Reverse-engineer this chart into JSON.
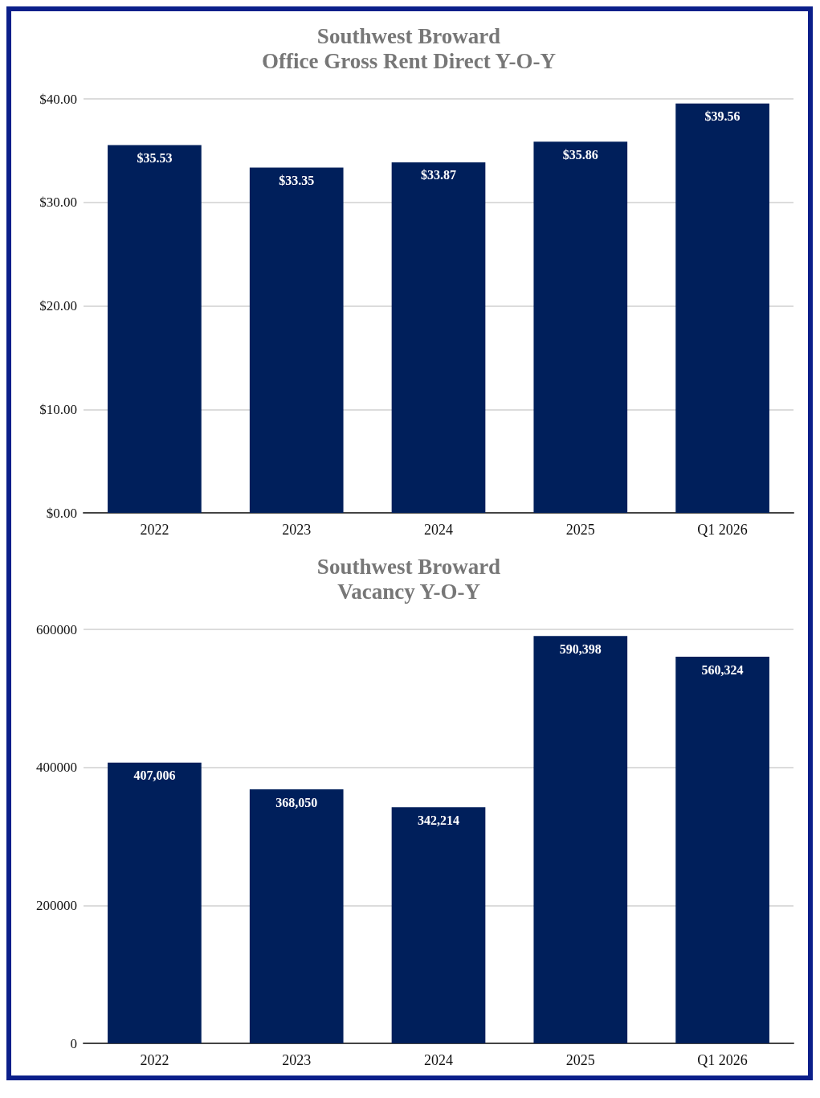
{
  "chart_data": [
    {
      "type": "bar",
      "title": "Southwest Broward",
      "subtitle": "Office Gross Rent Direct Y-O-Y",
      "categories": [
        "2022",
        "2023",
        "2024",
        "2025",
        "Q1 2026"
      ],
      "values": [
        35.53,
        33.35,
        33.87,
        35.86,
        39.56
      ],
      "value_labels": [
        "$35.53",
        "$33.35",
        "$33.87",
        "$35.86",
        "$39.56"
      ],
      "color": "#001f5b",
      "ylim": [
        0,
        40
      ],
      "yticks": [
        {
          "value": 0,
          "label": "$0.00"
        },
        {
          "value": 10,
          "label": "$10.00"
        },
        {
          "value": 20,
          "label": "$20.00"
        },
        {
          "value": 30,
          "label": "$30.00"
        },
        {
          "value": 40,
          "label": "$40.00"
        }
      ],
      "grid": "y"
    },
    {
      "type": "bar",
      "title": "Southwest Broward",
      "subtitle": "Vacancy Y-O-Y",
      "categories": [
        "2022",
        "2023",
        "2024",
        "2025",
        "Q1 2026"
      ],
      "values": [
        407006,
        368050,
        342214,
        590398,
        560324
      ],
      "value_labels": [
        "407,006",
        "368,050",
        "342,214",
        "590,398",
        "560,324"
      ],
      "color": "#001f5b",
      "ylim": [
        0,
        600000
      ],
      "yticks": [
        0,
        200000,
        400000,
        600000
      ],
      "grid": "y"
    }
  ]
}
